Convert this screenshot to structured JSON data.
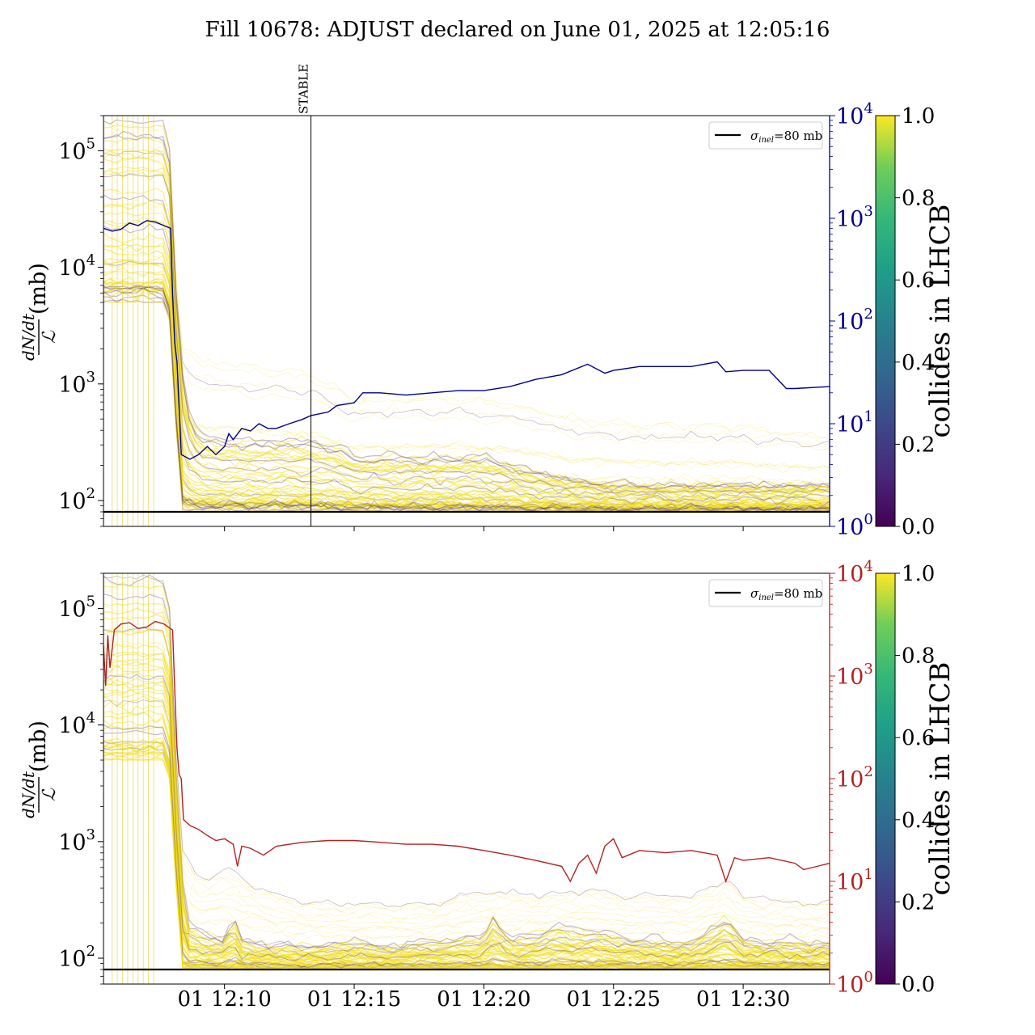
{
  "figure": {
    "title": "Fill 10678: ADJUST declared on June 01, 2025 at 12:05:16"
  },
  "colors": {
    "top_right_axis": "#00008b",
    "bottom_right_axis": "#b22222",
    "reference_line": "#000000",
    "colorbar_low": "#440154",
    "colorbar_high": "#fde725"
  },
  "chart_data": [
    {
      "type": "line",
      "panel": "top",
      "ylabel": "dN/dt / ℒ (mb)",
      "ylabel_parts": {
        "num": "dN/dt",
        "den": "ℒ",
        "unit": "(mb)"
      },
      "yscale": "log",
      "ylim": [
        60,
        200000
      ],
      "yticks": [
        {
          "v": 100,
          "label": "10",
          "exp": "2"
        },
        {
          "v": 1000,
          "label": "10",
          "exp": "3"
        },
        {
          "v": 10000,
          "label": "10",
          "exp": "4"
        },
        {
          "v": 100000,
          "label": "10",
          "exp": "5"
        }
      ],
      "x_range": [
        "12:05:20",
        "12:33:20"
      ],
      "x_ticks": [],
      "y2scale": "log",
      "y2lim": [
        1,
        10000
      ],
      "y2ticks": [
        {
          "v": 1,
          "label": "10",
          "exp": "0"
        },
        {
          "v": 10,
          "label": "10",
          "exp": "1"
        },
        {
          "v": 100,
          "label": "10",
          "exp": "2"
        },
        {
          "v": 1000,
          "label": "10",
          "exp": "3"
        },
        {
          "v": 10000,
          "label": "10",
          "exp": "4"
        }
      ],
      "legend": {
        "label": "σ",
        "sub": "inel",
        "value": "=80 mb",
        "position": "top-right"
      },
      "reference_line": {
        "value": 80
      },
      "annotation": {
        "text": "STABLE",
        "time": "12:13:20"
      },
      "secondary_series": {
        "axis": "right",
        "color": "#00008b",
        "points": [
          [
            "12:05:20",
            800
          ],
          [
            "12:05:40",
            750
          ],
          [
            "12:06:00",
            780
          ],
          [
            "12:06:20",
            900
          ],
          [
            "12:06:40",
            850
          ],
          [
            "12:07:00",
            950
          ],
          [
            "12:07:20",
            920
          ],
          [
            "12:07:40",
            850
          ],
          [
            "12:07:55",
            800
          ],
          [
            "12:08:00",
            180
          ],
          [
            "12:08:05",
            60
          ],
          [
            "12:08:10",
            40
          ],
          [
            "12:08:20",
            5
          ],
          [
            "12:08:40",
            4.5
          ],
          [
            "12:09:00",
            5
          ],
          [
            "12:09:20",
            6
          ],
          [
            "12:09:40",
            5
          ],
          [
            "12:10:00",
            6
          ],
          [
            "12:10:10",
            8
          ],
          [
            "12:10:20",
            7
          ],
          [
            "12:10:40",
            9
          ],
          [
            "12:11:00",
            8.5
          ],
          [
            "12:11:20",
            10
          ],
          [
            "12:11:40",
            9
          ],
          [
            "12:12:00",
            9
          ],
          [
            "12:12:30",
            10
          ],
          [
            "12:13:00",
            11
          ],
          [
            "12:13:20",
            12
          ],
          [
            "12:14:00",
            13
          ],
          [
            "12:14:20",
            15
          ],
          [
            "12:15:00",
            16
          ],
          [
            "12:15:20",
            20
          ],
          [
            "12:16:00",
            20
          ],
          [
            "12:17:00",
            19
          ],
          [
            "12:18:00",
            20
          ],
          [
            "12:19:00",
            21
          ],
          [
            "12:20:00",
            21
          ],
          [
            "12:21:00",
            23
          ],
          [
            "12:22:00",
            27
          ],
          [
            "12:23:00",
            30
          ],
          [
            "12:24:00",
            38
          ],
          [
            "12:24:40",
            31
          ],
          [
            "12:25:00",
            33
          ],
          [
            "12:26:00",
            36
          ],
          [
            "12:27:00",
            36
          ],
          [
            "12:28:00",
            36
          ],
          [
            "12:29:00",
            40
          ],
          [
            "12:29:20",
            32
          ],
          [
            "12:30:00",
            33
          ],
          [
            "12:31:00",
            33
          ],
          [
            "12:31:40",
            22
          ],
          [
            "12:32:00",
            22
          ],
          [
            "12:33:20",
            23
          ]
        ]
      },
      "bunch_envelope": {
        "description_free": true,
        "upper": [
          [
            "12:05:20",
            200000
          ],
          [
            "12:07:50",
            200000
          ],
          [
            "12:08:00",
            30000
          ],
          [
            "12:08:20",
            3000
          ],
          [
            "12:09:00",
            2000
          ],
          [
            "12:10:00",
            1800
          ],
          [
            "12:12:00",
            1600
          ],
          [
            "12:13:20",
            1500
          ],
          [
            "12:14:00",
            1200
          ],
          [
            "12:15:00",
            900
          ],
          [
            "12:17:00",
            900
          ],
          [
            "12:19:00",
            900
          ],
          [
            "12:21:00",
            800
          ],
          [
            "12:22:00",
            700
          ],
          [
            "12:24:00",
            550
          ],
          [
            "12:26:00",
            500
          ],
          [
            "12:28:00",
            500
          ],
          [
            "12:30:00",
            500
          ],
          [
            "12:31:00",
            450
          ],
          [
            "12:33:20",
            400
          ]
        ],
        "dense_upper": [
          [
            "12:05:20",
            200000
          ],
          [
            "12:07:50",
            200000
          ],
          [
            "12:08:10",
            5000
          ],
          [
            "12:08:30",
            800
          ],
          [
            "12:09:00",
            400
          ],
          [
            "12:10:00",
            350
          ],
          [
            "12:12:00",
            350
          ],
          [
            "12:13:20",
            350
          ],
          [
            "12:14:30",
            300
          ],
          [
            "12:15:00",
            250
          ],
          [
            "12:18:00",
            250
          ],
          [
            "12:20:00",
            250
          ],
          [
            "12:21:30",
            200
          ],
          [
            "12:22:00",
            180
          ],
          [
            "12:24:00",
            150
          ],
          [
            "12:26:00",
            140
          ],
          [
            "12:28:00",
            140
          ],
          [
            "12:30:00",
            140
          ],
          [
            "12:33:20",
            140
          ]
        ],
        "lower": [
          [
            "12:05:20",
            5000
          ],
          [
            "12:07:50",
            5000
          ],
          [
            "12:08:20",
            82
          ],
          [
            "12:33:20",
            82
          ]
        ]
      },
      "colorbar": {
        "label": "collides in LHCB",
        "range": [
          0.0,
          1.0
        ],
        "ticks": [
          "0.0",
          "0.2",
          "0.4",
          "0.6",
          "0.8",
          "1.0"
        ]
      }
    },
    {
      "type": "line",
      "panel": "bottom",
      "ylabel": "dN/dt / ℒ (mb)",
      "ylabel_parts": {
        "num": "dN/dt",
        "den": "ℒ",
        "unit": "(mb)"
      },
      "yscale": "log",
      "ylim": [
        60,
        200000
      ],
      "yticks": [
        {
          "v": 100,
          "label": "10",
          "exp": "2"
        },
        {
          "v": 1000,
          "label": "10",
          "exp": "3"
        },
        {
          "v": 10000,
          "label": "10",
          "exp": "4"
        },
        {
          "v": 100000,
          "label": "10",
          "exp": "5"
        }
      ],
      "x_range": [
        "12:05:20",
        "12:33:20"
      ],
      "x_ticks": [
        {
          "t": "12:10:00",
          "label": "01 12:10"
        },
        {
          "t": "12:15:00",
          "label": "01 12:15"
        },
        {
          "t": "12:20:00",
          "label": "01 12:20"
        },
        {
          "t": "12:25:00",
          "label": "01 12:25"
        },
        {
          "t": "12:30:00",
          "label": "01 12:30"
        }
      ],
      "y2scale": "log",
      "y2lim": [
        1,
        10000
      ],
      "y2ticks": [
        {
          "v": 1,
          "label": "10",
          "exp": "0"
        },
        {
          "v": 10,
          "label": "10",
          "exp": "1"
        },
        {
          "v": 100,
          "label": "10",
          "exp": "2"
        },
        {
          "v": 1000,
          "label": "10",
          "exp": "3"
        },
        {
          "v": 10000,
          "label": "10",
          "exp": "4"
        }
      ],
      "legend": {
        "label": "σ",
        "sub": "inel",
        "value": "=80 mb",
        "position": "top-right"
      },
      "reference_line": {
        "value": 80
      },
      "secondary_series": {
        "axis": "right",
        "color": "#b22222",
        "points": [
          [
            "12:05:20",
            2000
          ],
          [
            "12:05:25",
            800
          ],
          [
            "12:05:30",
            2500
          ],
          [
            "12:05:35",
            1200
          ],
          [
            "12:05:45",
            2800
          ],
          [
            "12:06:00",
            3200
          ],
          [
            "12:06:20",
            3300
          ],
          [
            "12:06:40",
            2900
          ],
          [
            "12:07:00",
            3000
          ],
          [
            "12:07:20",
            3400
          ],
          [
            "12:07:40",
            3200
          ],
          [
            "12:08:00",
            2800
          ],
          [
            "12:08:05",
            700
          ],
          [
            "12:08:10",
            200
          ],
          [
            "12:08:15",
            110
          ],
          [
            "12:08:20",
            100
          ],
          [
            "12:08:25",
            40
          ],
          [
            "12:08:40",
            35
          ],
          [
            "12:09:00",
            32
          ],
          [
            "12:09:20",
            28
          ],
          [
            "12:09:40",
            25
          ],
          [
            "12:10:00",
            26
          ],
          [
            "12:10:20",
            23
          ],
          [
            "12:10:30",
            14
          ],
          [
            "12:10:40",
            22
          ],
          [
            "12:11:00",
            21
          ],
          [
            "12:11:30",
            18
          ],
          [
            "12:12:00",
            22
          ],
          [
            "12:13:00",
            24
          ],
          [
            "12:14:00",
            25
          ],
          [
            "12:15:00",
            25
          ],
          [
            "12:16:00",
            24
          ],
          [
            "12:17:00",
            23
          ],
          [
            "12:18:00",
            23
          ],
          [
            "12:19:00",
            22
          ],
          [
            "12:20:00",
            20
          ],
          [
            "12:21:00",
            18
          ],
          [
            "12:22:00",
            16
          ],
          [
            "12:23:00",
            14
          ],
          [
            "12:23:20",
            10
          ],
          [
            "12:23:40",
            15
          ],
          [
            "12:24:00",
            18
          ],
          [
            "12:24:20",
            12
          ],
          [
            "12:24:40",
            22
          ],
          [
            "12:25:00",
            26
          ],
          [
            "12:25:20",
            17
          ],
          [
            "12:26:00",
            20
          ],
          [
            "12:27:00",
            19
          ],
          [
            "12:28:00",
            20
          ],
          [
            "12:29:00",
            18
          ],
          [
            "12:29:20",
            10
          ],
          [
            "12:29:40",
            17
          ],
          [
            "12:30:00",
            16
          ],
          [
            "12:31:00",
            17
          ],
          [
            "12:32:00",
            15
          ],
          [
            "12:32:20",
            13
          ],
          [
            "12:33:20",
            15
          ]
        ]
      },
      "bunch_envelope": {
        "upper": [
          [
            "12:05:20",
            200000
          ],
          [
            "12:07:50",
            200000
          ],
          [
            "12:08:00",
            20000
          ],
          [
            "12:08:20",
            900
          ],
          [
            "12:09:00",
            500
          ],
          [
            "12:10:00",
            600
          ],
          [
            "12:10:40",
            500
          ],
          [
            "12:12:00",
            350
          ],
          [
            "12:14:00",
            300
          ],
          [
            "12:16:00",
            300
          ],
          [
            "12:18:00",
            300
          ],
          [
            "12:20:00",
            400
          ],
          [
            "12:22:00",
            350
          ],
          [
            "12:24:00",
            400
          ],
          [
            "12:26:00",
            350
          ],
          [
            "12:28:00",
            350
          ],
          [
            "12:29:20",
            500
          ],
          [
            "12:30:00",
            350
          ],
          [
            "12:33:20",
            300
          ]
        ],
        "dense_upper": [
          [
            "12:05:20",
            200000
          ],
          [
            "12:07:50",
            200000
          ],
          [
            "12:08:10",
            3000
          ],
          [
            "12:08:30",
            200
          ],
          [
            "12:10:00",
            150
          ],
          [
            "12:10:20",
            250
          ],
          [
            "12:10:40",
            150
          ],
          [
            "12:12:00",
            130
          ],
          [
            "12:14:00",
            130
          ],
          [
            "12:15:00",
            150
          ],
          [
            "12:16:00",
            130
          ],
          [
            "12:20:00",
            160
          ],
          [
            "12:20:20",
            250
          ],
          [
            "12:21:00",
            150
          ],
          [
            "12:22:00",
            170
          ],
          [
            "12:23:00",
            200
          ],
          [
            "12:24:00",
            180
          ],
          [
            "12:26:00",
            150
          ],
          [
            "12:28:00",
            140
          ],
          [
            "12:29:20",
            250
          ],
          [
            "12:30:00",
            150
          ],
          [
            "12:33:20",
            140
          ]
        ],
        "lower": [
          [
            "12:05:20",
            5000
          ],
          [
            "12:07:50",
            5000
          ],
          [
            "12:08:20",
            82
          ],
          [
            "12:33:20",
            82
          ]
        ]
      },
      "colorbar": {
        "label": "collides in LHCB",
        "range": [
          0.0,
          1.0
        ],
        "ticks": [
          "0.0",
          "0.2",
          "0.4",
          "0.6",
          "0.8",
          "1.0"
        ]
      }
    }
  ]
}
